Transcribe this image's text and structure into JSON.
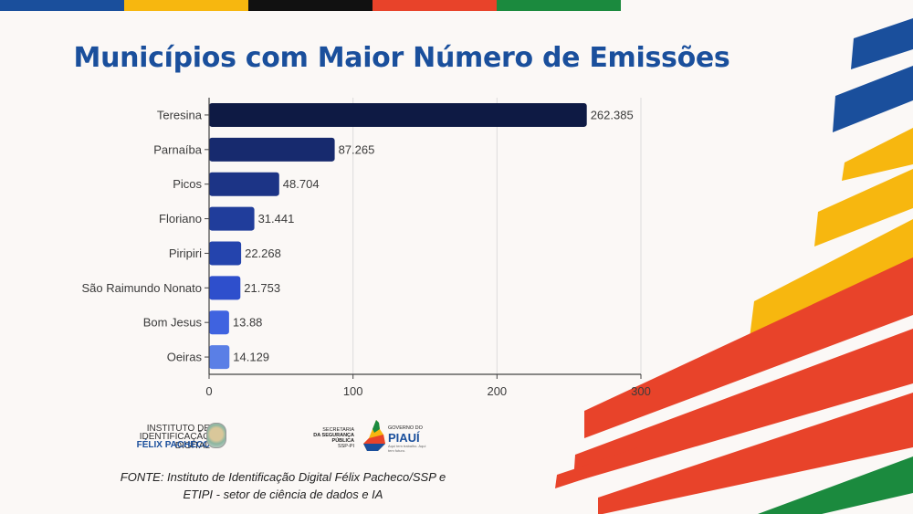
{
  "title": "Municípios com Maior Número de Emissões",
  "top_bar_colors": [
    "#1a4f9c",
    "#f7b70f",
    "#111111",
    "#e8432a",
    "#1b8a3e"
  ],
  "chart_data": {
    "type": "bar",
    "orientation": "horizontal",
    "categories": [
      "Teresina",
      "Parnaíba",
      "Picos",
      "Floriano",
      "Piripiri",
      "São Raimundo Nonato",
      "Bom Jesus",
      "Oeiras"
    ],
    "value_labels": [
      "262.385",
      "87.265",
      "48.704",
      "31.441",
      "22.268",
      "21.753",
      "13.88",
      "14.129"
    ],
    "values": [
      262.385,
      87.265,
      48.704,
      31.441,
      22.268,
      21.753,
      13.88,
      14.129
    ],
    "xlim": [
      0,
      300
    ],
    "xticks": [
      "0",
      "100",
      "200",
      "300"
    ],
    "grid": true,
    "bar_colors": [
      "#0e1a44",
      "#172a6e",
      "#1c3486",
      "#203d9b",
      "#2444ad",
      "#2e4fcc",
      "#3f63e0",
      "#5a7fe6"
    ]
  },
  "logos": {
    "iid": {
      "line1": "INSTITUTO DE",
      "line2": "IDENTIFICAÇÃO DIGITAL",
      "line3": "FÉLIX PACHECO"
    },
    "ssp": {
      "line1": "SECRETARIA",
      "line2": "DA SEGURANÇA PÚBLICA",
      "line3": "SSP-PI"
    },
    "gov": {
      "line1": "GOVERNO DO",
      "line2": "PIAUÍ",
      "line3": "Aqui tem trabalho. Aqui tem futuro."
    }
  },
  "source": {
    "line1": "FONTE:  Instituto de Identificação Digital Félix Pacheco/SSP e",
    "line2": "ETIPI - setor de ciência de dados e IA"
  }
}
